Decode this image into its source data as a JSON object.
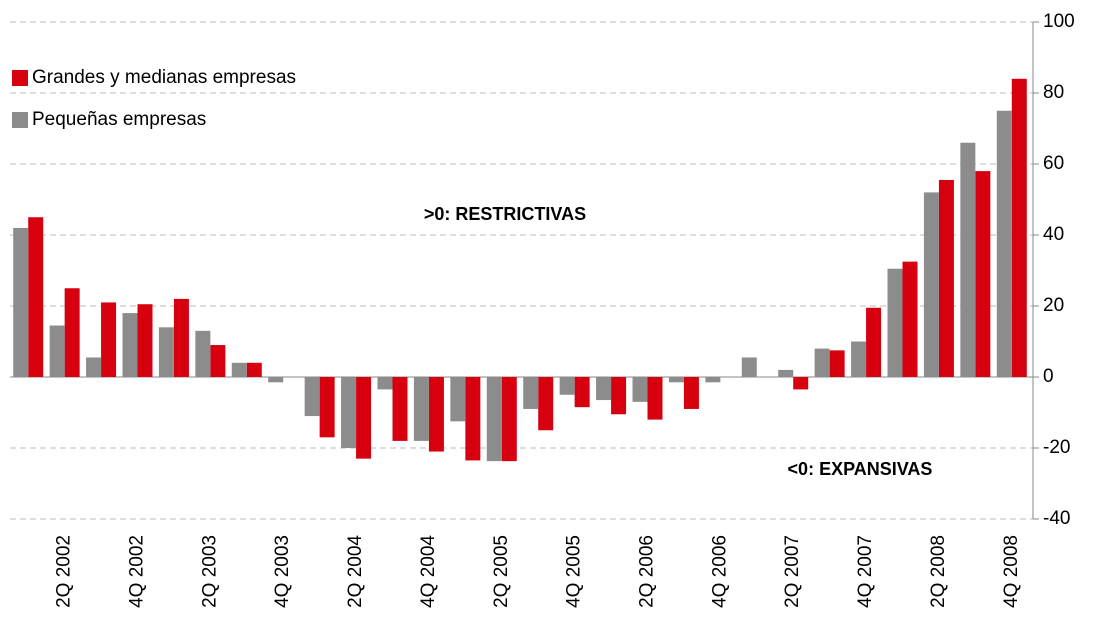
{
  "chart_data": {
    "type": "bar",
    "categories": [
      null,
      "2Q 2002",
      null,
      "4Q 2002",
      null,
      "2Q 2003",
      null,
      "4Q 2003",
      null,
      "2Q 2004",
      null,
      "4Q 2004",
      null,
      "2Q 2005",
      null,
      "4Q 2005",
      null,
      "2Q 2006",
      null,
      "4Q 2006",
      null,
      "2Q 2007",
      null,
      "4Q 2007",
      null,
      "2Q 2008",
      null,
      "4Q 2008"
    ],
    "series": [
      {
        "name": "Grandes y medianas empresas",
        "color": "#d7000f",
        "values": [
          45,
          25,
          21,
          20.5,
          22,
          9,
          4,
          0,
          -17,
          -23,
          -18,
          -21,
          -23.5,
          -23.7,
          -15,
          -8.5,
          -10.5,
          -12,
          -9,
          0,
          0,
          -3.5,
          7.5,
          19.5,
          32.5,
          55.5,
          58,
          84
        ]
      },
      {
        "name": "Pequeñas empresas",
        "color": "#8c8c8c",
        "values": [
          42,
          14.5,
          5.5,
          18,
          14,
          13,
          4,
          -1.5,
          -11,
          -20,
          -3.5,
          -18,
          -12.5,
          -23.7,
          -9,
          -5,
          -6.5,
          -7,
          -1.5,
          -1.5,
          5.5,
          2,
          8,
          10,
          30.5,
          52,
          66,
          75
        ]
      }
    ],
    "annotations": [
      ">0: RESTRICTIVAS",
      "<0: EXPANSIVAS"
    ],
    "ylim": [
      -40,
      100
    ],
    "yticks": [
      -40,
      -20,
      0,
      20,
      40,
      60,
      80,
      100
    ],
    "grid": true,
    "legend": "top-left"
  }
}
